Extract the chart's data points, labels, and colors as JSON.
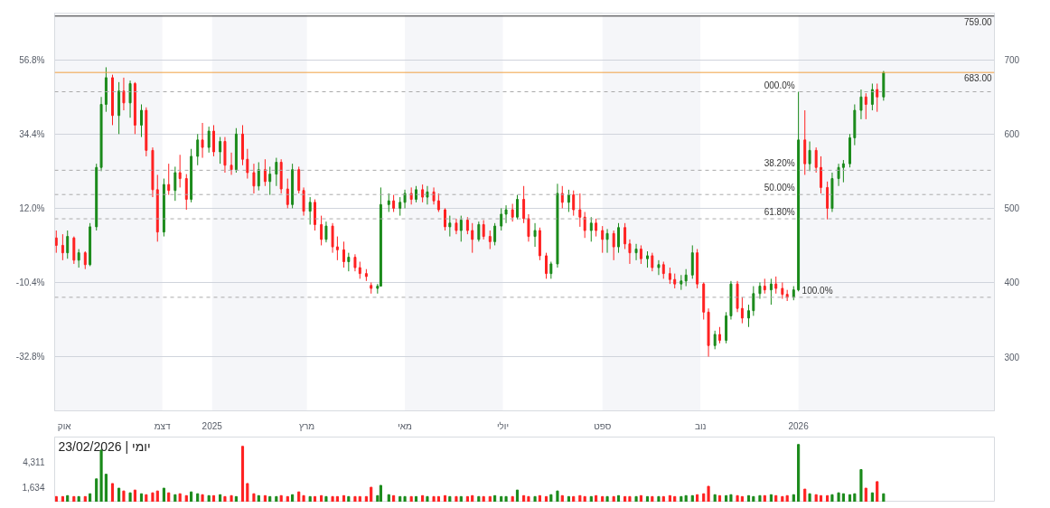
{
  "chart_data": [
    {
      "type": "candlestick",
      "colors": [
        "#ff2020",
        "#ff2020",
        "#1a8a1a",
        "#ff2020",
        "#1a8a1a",
        "#ff2020",
        "#1a8a1a",
        "#1a8a1a",
        "#1a8a1a",
        "#1a8a1a",
        "#ff2020",
        "#1a8a1a",
        "#ff2020",
        "#1a8a1a",
        "#ff2020",
        "#1a8a1a",
        "#ff2020",
        "#ff2020",
        "#ff2020",
        "#1a8a1a",
        "#ff2020",
        "#1a8a1a",
        "#ff2020",
        "#ff2020",
        "#1a8a1a",
        "#1a8a1a",
        "#ff2020",
        "#1a8a1a",
        "#ff2020",
        "#1a8a1a",
        "#ff2020",
        "#ff2020",
        "#1a8a1a",
        "#ff2020",
        "#ff2020",
        "#ff2020",
        "#1a8a1a",
        "#ff2020",
        "#1a8a1a",
        "#1a8a1a",
        "#ff2020",
        "#ff2020",
        "#1a8a1a",
        "#ff2020",
        "#ff2020",
        "#1a8a1a",
        "#ff2020",
        "#ff2020",
        "#1a8a1a",
        "#ff2020",
        "#ff2020",
        "#ff2020",
        "#1a8a1a",
        "#ff2020",
        "#ff2020",
        "#ff2020",
        "#ff2020",
        "#1a8a1a",
        "#1a8a1a",
        "#1a8a1a",
        "#ff2020",
        "#1a8a1a",
        "#1a8a1a",
        "#ff2020",
        "#1a8a1a",
        "#ff2020",
        "#1a8a1a",
        "#ff2020",
        "#ff2020",
        "#ff2020",
        "#1a8a1a",
        "#ff2020",
        "#1a8a1a",
        "#ff2020",
        "#ff2020",
        "#1a8a1a",
        "#ff2020",
        "#ff2020",
        "#1a8a1a",
        "#1a8a1a",
        "#1a8a1a",
        "#ff2020",
        "#1a8a1a",
        "#ff2020",
        "#ff2020",
        "#1a8a1a",
        "#ff2020",
        "#ff2020",
        "#1a8a1a",
        "#1a8a1a",
        "#ff2020",
        "#1a8a1a",
        "#ff2020",
        "#ff2020",
        "#ff2020",
        "#1a8a1a",
        "#ff2020",
        "#ff2020",
        "#1a8a1a",
        "#ff2020",
        "#1a8a1a",
        "#ff2020",
        "#ff2020",
        "#1a8a1a",
        "#ff2020",
        "#1a8a1a",
        "#ff2020",
        "#1a8a1a",
        "#ff2020",
        "#ff2020",
        "#ff2020",
        "#1a8a1a",
        "#1a8a1a",
        "#1a8a1a",
        "#ff2020",
        "#ff2020",
        "#ff2020",
        "#1a8a1a",
        "#ff2020",
        "#1a8a1a",
        "#1a8a1a",
        "#ff2020",
        "#ff2020",
        "#1a8a1a",
        "#1a8a1a",
        "#1a8a1a",
        "#ff2020",
        "#1a8a1a",
        "#ff2020",
        "#ff2020",
        "#ff2020",
        "#1a8a1a",
        "#1a8a1a",
        "#ff2020",
        "#1a8a1a",
        "#ff2020",
        "#ff2020",
        "#ff2020",
        "#1a8a1a",
        "#1a8a1a",
        "#1a8a1a",
        "#1a8a1a",
        "#1a8a1a",
        "#1a8a1a",
        "#ff2020",
        "#1a8a1a",
        "#ff2020",
        "#1a8a1a"
      ],
      "x": [
        "2024-09-26",
        "2024-09-30",
        "2024-10-03",
        "2024-10-07",
        "2024-10-10",
        "2024-10-14",
        "2024-10-17",
        "2024-10-21",
        "2024-10-24",
        "2024-10-27",
        "2024-10-31",
        "2024-11-04",
        "2024-11-07",
        "2024-11-11",
        "2024-11-14",
        "2024-11-18",
        "2024-11-21",
        "2024-11-25",
        "2024-11-28",
        "2024-12-02",
        "2024-12-05",
        "2024-12-09",
        "2024-12-12",
        "2024-12-16",
        "2024-12-19",
        "2024-12-23",
        "2024-12-26",
        "2024-12-30",
        "2025-01-02",
        "2025-01-06",
        "2025-01-09",
        "2025-01-13",
        "2025-01-16",
        "2025-01-20",
        "2025-01-23",
        "2025-01-27",
        "2025-01-30",
        "2025-02-03",
        "2025-02-06",
        "2025-02-10",
        "2025-02-13",
        "2025-02-17",
        "2025-02-20",
        "2025-02-24",
        "2025-02-27",
        "2025-03-03",
        "2025-03-06",
        "2025-03-10",
        "2025-03-13",
        "2025-03-17",
        "2025-03-20",
        "2025-03-24",
        "2025-03-27",
        "2025-03-31",
        "2025-04-03",
        "2025-04-07",
        "2025-04-10",
        "2025-04-14",
        "2025-04-16",
        "2025-04-21",
        "2025-04-24",
        "2025-04-28",
        "2025-05-01",
        "2025-05-05",
        "2025-05-08",
        "2025-05-12",
        "2025-05-15",
        "2025-05-19",
        "2025-05-22",
        "2025-05-26",
        "2025-05-29",
        "2025-06-02",
        "2025-06-05",
        "2025-06-09",
        "2025-06-12",
        "2025-06-16",
        "2025-06-19",
        "2025-06-23",
        "2025-06-26",
        "2025-06-30",
        "2025-07-03",
        "2025-07-07",
        "2025-07-10",
        "2025-07-14",
        "2025-07-17",
        "2025-07-21",
        "2025-07-24",
        "2025-07-28",
        "2025-07-31",
        "2025-08-04",
        "2025-08-07",
        "2025-08-11",
        "2025-08-14",
        "2025-08-18",
        "2025-08-21",
        "2025-08-25",
        "2025-08-28",
        "2025-09-01",
        "2025-09-04",
        "2025-09-08",
        "2025-09-11",
        "2025-09-15",
        "2025-09-18",
        "2025-09-22",
        "2025-09-25",
        "2025-09-29",
        "2025-10-02",
        "2025-10-06",
        "2025-10-09",
        "2025-10-13",
        "2025-10-16",
        "2025-10-20",
        "2025-10-23",
        "2025-10-27",
        "2025-10-30",
        "2025-11-03",
        "2025-11-06",
        "2025-11-10",
        "2025-11-13",
        "2025-11-17",
        "2025-11-20",
        "2025-11-24",
        "2025-11-27",
        "2025-12-01",
        "2025-12-04",
        "2025-12-08",
        "2025-12-11",
        "2025-12-15",
        "2025-12-18",
        "2025-12-22",
        "2025-12-25",
        "2025-12-29",
        "2026-01-01",
        "2026-01-05",
        "2026-01-08",
        "2026-01-12",
        "2026-01-15",
        "2026-01-19",
        "2026-01-22",
        "2026-01-26",
        "2026-01-29",
        "2026-02-02",
        "2026-02-05",
        "2026-02-09",
        "2026-02-12",
        "2026-02-16",
        "2026-02-19",
        "2026-02-23"
      ],
      "ohlc": [
        [
          460,
          470,
          440,
          450
        ],
        [
          450,
          465,
          430,
          440
        ],
        [
          440,
          470,
          432,
          462
        ],
        [
          460,
          462,
          425,
          430
        ],
        [
          430,
          445,
          420,
          440
        ],
        [
          440,
          442,
          418,
          424
        ],
        [
          424,
          480,
          422,
          475
        ],
        [
          475,
          560,
          470,
          555
        ],
        [
          555,
          650,
          550,
          640
        ],
        [
          640,
          690,
          630,
          676
        ],
        [
          676,
          680,
          612,
          625
        ],
        [
          625,
          670,
          600,
          658
        ],
        [
          658,
          676,
          632,
          642
        ],
        [
          642,
          672,
          622,
          668
        ],
        [
          668,
          670,
          600,
          612
        ],
        [
          612,
          640,
          596,
          632
        ],
        [
          632,
          636,
          570,
          578
        ],
        [
          578,
          582,
          515,
          525
        ],
        [
          525,
          545,
          455,
          468
        ],
        [
          468,
          540,
          462,
          532
        ],
        [
          532,
          560,
          518,
          524
        ],
        [
          524,
          556,
          510,
          548
        ],
        [
          548,
          572,
          528,
          540
        ],
        [
          540,
          546,
          498,
          512
        ],
        [
          512,
          580,
          508,
          570
        ],
        [
          570,
          600,
          558,
          592
        ],
        [
          592,
          615,
          568,
          582
        ],
        [
          582,
          610,
          575,
          604
        ],
        [
          604,
          612,
          570,
          576
        ],
        [
          576,
          596,
          560,
          590
        ],
        [
          590,
          596,
          548,
          558
        ],
        [
          558,
          575,
          545,
          552
        ],
        [
          552,
          608,
          548,
          600
        ],
        [
          600,
          612,
          558,
          566
        ],
        [
          566,
          580,
          540,
          548
        ],
        [
          548,
          560,
          520,
          530
        ],
        [
          530,
          562,
          524,
          552
        ],
        [
          552,
          566,
          530,
          536
        ],
        [
          536,
          556,
          518,
          546
        ],
        [
          546,
          568,
          530,
          562
        ],
        [
          562,
          566,
          520,
          526
        ],
        [
          526,
          540,
          500,
          505
        ],
        [
          505,
          560,
          500,
          552
        ],
        [
          552,
          556,
          520,
          524
        ],
        [
          524,
          528,
          490,
          496
        ],
        [
          496,
          515,
          478,
          508
        ],
        [
          508,
          512,
          470,
          478
        ],
        [
          478,
          490,
          450,
          458
        ],
        [
          458,
          482,
          454,
          476
        ],
        [
          476,
          480,
          440,
          448
        ],
        [
          448,
          462,
          430,
          444
        ],
        [
          444,
          455,
          420,
          428
        ],
        [
          428,
          440,
          415,
          434
        ],
        [
          434,
          438,
          415,
          420
        ],
        [
          420,
          428,
          405,
          412
        ],
        [
          412,
          418,
          402,
          408
        ],
        [
          396,
          400,
          385,
          392
        ],
        [
          392,
          398,
          385,
          395
        ],
        [
          395,
          528,
          395,
          505
        ],
        [
          505,
          520,
          495,
          510
        ],
        [
          510,
          518,
          495,
          500
        ],
        [
          500,
          515,
          490,
          508
        ],
        [
          508,
          525,
          500,
          520
        ],
        [
          520,
          528,
          505,
          512
        ],
        [
          512,
          530,
          508,
          525
        ],
        [
          525,
          532,
          508,
          515
        ],
        [
          515,
          530,
          505,
          522
        ],
        [
          522,
          528,
          505,
          510
        ],
        [
          510,
          520,
          495,
          498
        ],
        [
          498,
          500,
          470,
          475
        ],
        [
          475,
          490,
          462,
          480
        ],
        [
          480,
          486,
          465,
          470
        ],
        [
          470,
          490,
          455,
          484
        ],
        [
          484,
          488,
          465,
          470
        ],
        [
          470,
          480,
          440,
          458
        ],
        [
          458,
          482,
          455,
          478
        ],
        [
          478,
          484,
          458,
          462
        ],
        [
          462,
          470,
          445,
          455
        ],
        [
          455,
          480,
          450,
          476
        ],
        [
          476,
          500,
          470,
          492
        ],
        [
          492,
          504,
          480,
          498
        ],
        [
          498,
          506,
          482,
          488
        ],
        [
          488,
          518,
          485,
          512
        ],
        [
          512,
          530,
          480,
          486
        ],
        [
          486,
          492,
          455,
          462
        ],
        [
          462,
          480,
          448,
          470
        ],
        [
          470,
          474,
          430,
          436
        ],
        [
          436,
          440,
          405,
          412
        ],
        [
          412,
          428,
          405,
          425
        ],
        [
          425,
          533,
          420,
          520
        ],
        [
          520,
          530,
          500,
          508
        ],
        [
          508,
          525,
          495,
          518
        ],
        [
          518,
          524,
          490,
          498
        ],
        [
          498,
          520,
          475,
          488
        ],
        [
          488,
          495,
          460,
          470
        ],
        [
          470,
          488,
          455,
          480
        ],
        [
          480,
          486,
          462,
          470
        ],
        [
          470,
          476,
          440,
          458
        ],
        [
          458,
          472,
          440,
          466
        ],
        [
          466,
          470,
          430,
          448
        ],
        [
          448,
          480,
          440,
          474
        ],
        [
          474,
          480,
          445,
          452
        ],
        [
          452,
          458,
          425,
          440
        ],
        [
          440,
          452,
          430,
          445
        ],
        [
          445,
          450,
          425,
          432
        ],
        [
          432,
          442,
          420,
          436
        ],
        [
          436,
          440,
          415,
          420
        ],
        [
          420,
          430,
          410,
          424
        ],
        [
          424,
          428,
          405,
          412
        ],
        [
          412,
          420,
          398,
          404
        ],
        [
          404,
          412,
          392,
          398
        ],
        [
          398,
          410,
          390,
          402
        ],
        [
          402,
          418,
          395,
          410
        ],
        [
          410,
          450,
          405,
          440
        ],
        [
          440,
          445,
          392,
          398
        ],
        [
          398,
          400,
          350,
          360
        ],
        [
          360,
          365,
          300,
          315
        ],
        [
          315,
          335,
          310,
          330
        ],
        [
          330,
          340,
          318,
          322
        ],
        [
          322,
          360,
          318,
          355
        ],
        [
          355,
          402,
          350,
          398
        ],
        [
          398,
          402,
          360,
          365
        ],
        [
          365,
          380,
          345,
          352
        ],
        [
          352,
          370,
          340,
          362
        ],
        [
          362,
          395,
          355,
          385
        ],
        [
          385,
          400,
          378,
          395
        ],
        [
          395,
          405,
          385,
          390
        ],
        [
          390,
          405,
          370,
          398
        ],
        [
          398,
          408,
          385,
          392
        ],
        [
          392,
          400,
          378,
          384
        ],
        [
          384,
          390,
          375,
          380
        ],
        [
          380,
          395,
          376,
          390
        ],
        [
          390,
          657,
          388,
          592
        ],
        [
          592,
          632,
          545,
          560
        ],
        [
          560,
          590,
          550,
          578
        ],
        [
          578,
          582,
          548,
          555
        ],
        [
          555,
          570,
          520,
          528
        ],
        [
          528,
          536,
          485,
          500
        ],
        [
          500,
          548,
          495,
          540
        ],
        [
          540,
          560,
          530,
          555
        ],
        [
          555,
          565,
          535,
          560
        ],
        [
          560,
          600,
          555,
          595
        ],
        [
          595,
          640,
          585,
          632
        ],
        [
          632,
          660,
          620,
          650
        ],
        [
          650,
          655,
          620,
          640
        ],
        [
          640,
          668,
          632,
          660
        ],
        [
          660,
          668,
          630,
          650
        ],
        [
          650,
          685,
          645,
          683
        ]
      ],
      "xlim": [
        "2024-09-25",
        "2026-05-03"
      ],
      "xticks": [
        {
          "value": "2024-10-01",
          "label": "אוק"
        },
        {
          "value": "2024-12-01",
          "label": "דצמ"
        },
        {
          "value": "2025-01-01",
          "label": "2025"
        },
        {
          "value": "2025-03-01",
          "label": "מרץ"
        },
        {
          "value": "2025-05-01",
          "label": "מאי"
        },
        {
          "value": "2025-07-01",
          "label": "יולי"
        },
        {
          "value": "2025-09-01",
          "label": "ספט"
        },
        {
          "value": "2025-11-01",
          "label": "נוב"
        },
        {
          "value": "2026-01-01",
          "label": "2026"
        }
      ],
      "ylim": [
        227,
        763
      ],
      "yticks": [
        300,
        400,
        500,
        600,
        700
      ],
      "y2lim": [
        -49.2,
        70.9
      ],
      "y2ticks": [
        {
          "value": -32.8,
          "label": "-32.8%"
        },
        {
          "value": -10.4,
          "label": "-10.4%"
        },
        {
          "value": 12.0,
          "label": "12.0%"
        },
        {
          "value": 34.4,
          "label": "34.4%"
        },
        {
          "value": 56.8,
          "label": "56.8%"
        }
      ],
      "grid": "y",
      "bands": [
        {
          "axis": "x",
          "from": "2024-09-01",
          "to": "2024-12-01",
          "color": "#f5f6f9"
        },
        {
          "axis": "x",
          "from": "2025-01-01",
          "to": "2025-03-01",
          "color": "#f5f6f9"
        },
        {
          "axis": "x",
          "from": "2025-05-01",
          "to": "2025-07-01",
          "color": "#f5f6f9"
        },
        {
          "axis": "x",
          "from": "2025-09-01",
          "to": "2025-11-01",
          "color": "#f5f6f9"
        },
        {
          "axis": "x",
          "from": "2026-01-01",
          "to": "2026-05-03",
          "color": "#f5f6f9"
        }
      ],
      "ref_lines": [
        {
          "axis": "y",
          "value": 759,
          "label": "759.00",
          "color": "#333333",
          "line_style": "solid"
        },
        {
          "axis": "y",
          "value": 683,
          "label": "683.00",
          "color": "#f0a040",
          "line_style": "solid"
        },
        {
          "axis": "y",
          "value": 657,
          "color": "#aaaaaa",
          "line_style": "dashed"
        },
        {
          "axis": "y",
          "value": 551.2,
          "color": "#aaaaaa",
          "line_style": "dashed"
        },
        {
          "axis": "y",
          "value": 518.5,
          "color": "#aaaaaa",
          "line_style": "dashed"
        },
        {
          "axis": "y",
          "value": 485.8,
          "color": "#aaaaaa",
          "line_style": "dashed"
        },
        {
          "axis": "y",
          "value": 380,
          "color": "#aaaaaa",
          "line_style": "dashed"
        }
      ],
      "annotations": [
        {
          "text": "000.0%",
          "x": "2026-01-01",
          "y": 657
        },
        {
          "text": "38.20%",
          "x": "2026-01-01",
          "y": 551.2
        },
        {
          "text": "50.00%",
          "x": "2026-01-01",
          "y": 518.5
        },
        {
          "text": "61.80%",
          "x": "2026-01-01",
          "y": 485.8
        },
        {
          "text": "100.0%",
          "x": "2026-01-01",
          "y": 380
        }
      ]
    },
    {
      "type": "bar",
      "colors": [
        "#ff2020",
        "#ff2020",
        "#1a8a1a",
        "#ff2020",
        "#1a8a1a",
        "#ff2020",
        "#1a8a1a",
        "#1a8a1a",
        "#1a8a1a",
        "#1a8a1a",
        "#ff2020",
        "#1a8a1a",
        "#ff2020",
        "#1a8a1a",
        "#ff2020",
        "#1a8a1a",
        "#ff2020",
        "#ff2020",
        "#ff2020",
        "#1a8a1a",
        "#ff2020",
        "#1a8a1a",
        "#ff2020",
        "#ff2020",
        "#1a8a1a",
        "#1a8a1a",
        "#ff2020",
        "#1a8a1a",
        "#ff2020",
        "#1a8a1a",
        "#ff2020",
        "#ff2020",
        "#1a8a1a",
        "#ff2020",
        "#ff2020",
        "#ff2020",
        "#1a8a1a",
        "#ff2020",
        "#1a8a1a",
        "#1a8a1a",
        "#ff2020",
        "#ff2020",
        "#1a8a1a",
        "#ff2020",
        "#ff2020",
        "#1a8a1a",
        "#ff2020",
        "#ff2020",
        "#1a8a1a",
        "#ff2020",
        "#ff2020",
        "#ff2020",
        "#1a8a1a",
        "#ff2020",
        "#ff2020",
        "#ff2020",
        "#ff2020",
        "#1a8a1a",
        "#1a8a1a",
        "#1a8a1a",
        "#ff2020",
        "#1a8a1a",
        "#1a8a1a",
        "#ff2020",
        "#1a8a1a",
        "#ff2020",
        "#1a8a1a",
        "#ff2020",
        "#ff2020",
        "#ff2020",
        "#1a8a1a",
        "#ff2020",
        "#1a8a1a",
        "#ff2020",
        "#ff2020",
        "#1a8a1a",
        "#ff2020",
        "#ff2020",
        "#1a8a1a",
        "#1a8a1a",
        "#1a8a1a",
        "#ff2020",
        "#1a8a1a",
        "#ff2020",
        "#ff2020",
        "#1a8a1a",
        "#ff2020",
        "#ff2020",
        "#1a8a1a",
        "#1a8a1a",
        "#ff2020",
        "#1a8a1a",
        "#ff2020",
        "#ff2020",
        "#ff2020",
        "#1a8a1a",
        "#ff2020",
        "#ff2020",
        "#1a8a1a",
        "#ff2020",
        "#1a8a1a",
        "#ff2020",
        "#ff2020",
        "#1a8a1a",
        "#ff2020",
        "#1a8a1a",
        "#ff2020",
        "#1a8a1a",
        "#ff2020",
        "#ff2020",
        "#ff2020",
        "#1a8a1a",
        "#1a8a1a",
        "#1a8a1a",
        "#ff2020",
        "#ff2020",
        "#ff2020",
        "#1a8a1a",
        "#ff2020",
        "#1a8a1a",
        "#1a8a1a",
        "#ff2020",
        "#ff2020",
        "#1a8a1a",
        "#1a8a1a",
        "#1a8a1a",
        "#ff2020",
        "#1a8a1a",
        "#ff2020",
        "#ff2020",
        "#ff2020",
        "#1a8a1a",
        "#1a8a1a",
        "#ff2020",
        "#1a8a1a",
        "#ff2020",
        "#ff2020",
        "#ff2020",
        "#1a8a1a",
        "#1a8a1a",
        "#1a8a1a",
        "#1a8a1a",
        "#1a8a1a",
        "#1a8a1a",
        "#ff2020",
        "#1a8a1a",
        "#ff2020",
        "#1a8a1a"
      ],
      "x": [
        "2024-09-26",
        "2024-09-30",
        "2024-10-03",
        "2024-10-07",
        "2024-10-10",
        "2024-10-14",
        "2024-10-17",
        "2024-10-21",
        "2024-10-24",
        "2024-10-27",
        "2024-10-31",
        "2024-11-04",
        "2024-11-07",
        "2024-11-11",
        "2024-11-14",
        "2024-11-18",
        "2024-11-21",
        "2024-11-25",
        "2024-11-28",
        "2024-12-02",
        "2024-12-05",
        "2024-12-09",
        "2024-12-12",
        "2024-12-16",
        "2024-12-19",
        "2024-12-23",
        "2024-12-26",
        "2024-12-30",
        "2025-01-02",
        "2025-01-06",
        "2025-01-09",
        "2025-01-13",
        "2025-01-16",
        "2025-01-20",
        "2025-01-23",
        "2025-01-27",
        "2025-01-30",
        "2025-02-03",
        "2025-02-06",
        "2025-02-10",
        "2025-02-13",
        "2025-02-17",
        "2025-02-20",
        "2025-02-24",
        "2025-02-27",
        "2025-03-03",
        "2025-03-06",
        "2025-03-10",
        "2025-03-13",
        "2025-03-17",
        "2025-03-20",
        "2025-03-24",
        "2025-03-27",
        "2025-03-31",
        "2025-04-03",
        "2025-04-07",
        "2025-04-10",
        "2025-04-14",
        "2025-04-16",
        "2025-04-21",
        "2025-04-24",
        "2025-04-28",
        "2025-05-01",
        "2025-05-05",
        "2025-05-08",
        "2025-05-12",
        "2025-05-15",
        "2025-05-19",
        "2025-05-22",
        "2025-05-26",
        "2025-05-29",
        "2025-06-02",
        "2025-06-05",
        "2025-06-09",
        "2025-06-12",
        "2025-06-16",
        "2025-06-19",
        "2025-06-23",
        "2025-06-26",
        "2025-06-30",
        "2025-07-03",
        "2025-07-07",
        "2025-07-10",
        "2025-07-14",
        "2025-07-17",
        "2025-07-21",
        "2025-07-24",
        "2025-07-28",
        "2025-07-31",
        "2025-08-04",
        "2025-08-07",
        "2025-08-11",
        "2025-08-14",
        "2025-08-18",
        "2025-08-21",
        "2025-08-25",
        "2025-08-28",
        "2025-09-01",
        "2025-09-04",
        "2025-09-08",
        "2025-09-11",
        "2025-09-15",
        "2025-09-18",
        "2025-09-22",
        "2025-09-25",
        "2025-09-29",
        "2025-10-02",
        "2025-10-06",
        "2025-10-09",
        "2025-10-13",
        "2025-10-16",
        "2025-10-20",
        "2025-10-23",
        "2025-10-27",
        "2025-10-30",
        "2025-11-03",
        "2025-11-06",
        "2025-11-10",
        "2025-11-13",
        "2025-11-17",
        "2025-11-20",
        "2025-11-24",
        "2025-11-27",
        "2025-12-01",
        "2025-12-04",
        "2025-12-08",
        "2025-12-11",
        "2025-12-15",
        "2025-12-18",
        "2025-12-22",
        "2025-12-25",
        "2025-12-29",
        "2026-01-01",
        "2026-01-05",
        "2026-01-08",
        "2026-01-12",
        "2026-01-15",
        "2026-01-19",
        "2026-01-22",
        "2026-01-26",
        "2026-01-29",
        "2026-02-02",
        "2026-02-05",
        "2026-02-09",
        "2026-02-12",
        "2026-02-16",
        "2026-02-19",
        "2026-02-23"
      ],
      "values": [
        600,
        600,
        700,
        600,
        600,
        600,
        900,
        2500,
        5600,
        3000,
        2000,
        1500,
        1200,
        1000,
        1300,
        900,
        800,
        1000,
        1200,
        1500,
        1000,
        800,
        900,
        700,
        1100,
        900,
        800,
        700,
        700,
        800,
        600,
        700,
        600,
        6000,
        2000,
        900,
        700,
        700,
        600,
        600,
        700,
        600,
        800,
        1100,
        700,
        600,
        600,
        700,
        600,
        600,
        600,
        700,
        600,
        600,
        600,
        600,
        1600,
        700,
        1800,
        800,
        700,
        600,
        600,
        600,
        600,
        700,
        600,
        600,
        600,
        700,
        600,
        600,
        600,
        600,
        700,
        600,
        600,
        600,
        700,
        600,
        600,
        600,
        1300,
        700,
        600,
        600,
        700,
        600,
        800,
        1200,
        700,
        600,
        600,
        700,
        600,
        600,
        700,
        600,
        600,
        600,
        700,
        600,
        600,
        600,
        700,
        600,
        600,
        600,
        600,
        700,
        600,
        600,
        700,
        700,
        800,
        900,
        1700,
        800,
        700,
        700,
        800,
        700,
        600,
        700,
        600,
        700,
        700,
        800,
        700,
        600,
        700,
        800,
        6200,
        1400,
        900,
        800,
        700,
        700,
        800,
        1000,
        900,
        800,
        900,
        3500,
        1500,
        1000,
        2200,
        900
      ],
      "xlim": [
        "2024-09-25",
        "2026-05-03"
      ],
      "ylim": [
        0,
        7000
      ],
      "yticks": [
        {
          "value": 1634,
          "label": "1,634"
        },
        {
          "value": 4311,
          "label": "4,311"
        }
      ],
      "tick_labels": "y",
      "grid": false,
      "annotations": [
        "יומי | 23/02/2026"
      ]
    }
  ]
}
